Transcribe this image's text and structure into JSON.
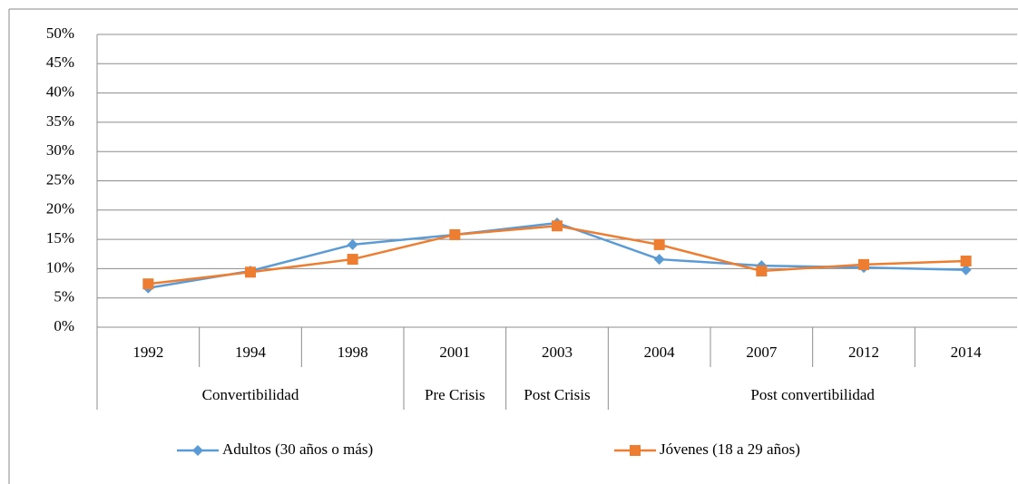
{
  "chart_data": {
    "type": "line",
    "category_groups": [
      {
        "label": "Convertibilidad",
        "categories": [
          "1992",
          "1994",
          "1998"
        ]
      },
      {
        "label": "Pre Crisis",
        "categories": [
          "2001"
        ]
      },
      {
        "label": "Post Crisis",
        "categories": [
          "2003"
        ]
      },
      {
        "label": "Post convertibilidad",
        "categories": [
          "2004",
          "2007",
          "2012",
          "2014"
        ]
      }
    ],
    "series": [
      {
        "name": "Adultos (30 años o más)",
        "color": "#5b9bd5",
        "marker": "diamond",
        "values": [
          6.7,
          9.6,
          14.1,
          15.8,
          17.8,
          11.6,
          10.5,
          10.2,
          9.8
        ]
      },
      {
        "name": "Jóvenes (18 a 29 años)",
        "color": "#ed7d31",
        "marker": "square",
        "values": [
          7.4,
          9.4,
          11.6,
          15.8,
          17.3,
          14.1,
          9.6,
          10.7,
          11.3
        ]
      }
    ],
    "ylim": [
      0,
      50
    ],
    "yticks": [
      {
        "value": 0,
        "label": "0%"
      },
      {
        "value": 5,
        "label": "5%"
      },
      {
        "value": 10,
        "label": "10%"
      },
      {
        "value": 15,
        "label": "15%"
      },
      {
        "value": 20,
        "label": "20%"
      },
      {
        "value": 25,
        "label": "25%"
      },
      {
        "value": 30,
        "label": "30%"
      },
      {
        "value": 35,
        "label": "35%"
      },
      {
        "value": 40,
        "label": "40%"
      },
      {
        "value": 45,
        "label": "45%"
      },
      {
        "value": 50,
        "label": "50%"
      }
    ],
    "grid": true,
    "legend": "bottom"
  }
}
